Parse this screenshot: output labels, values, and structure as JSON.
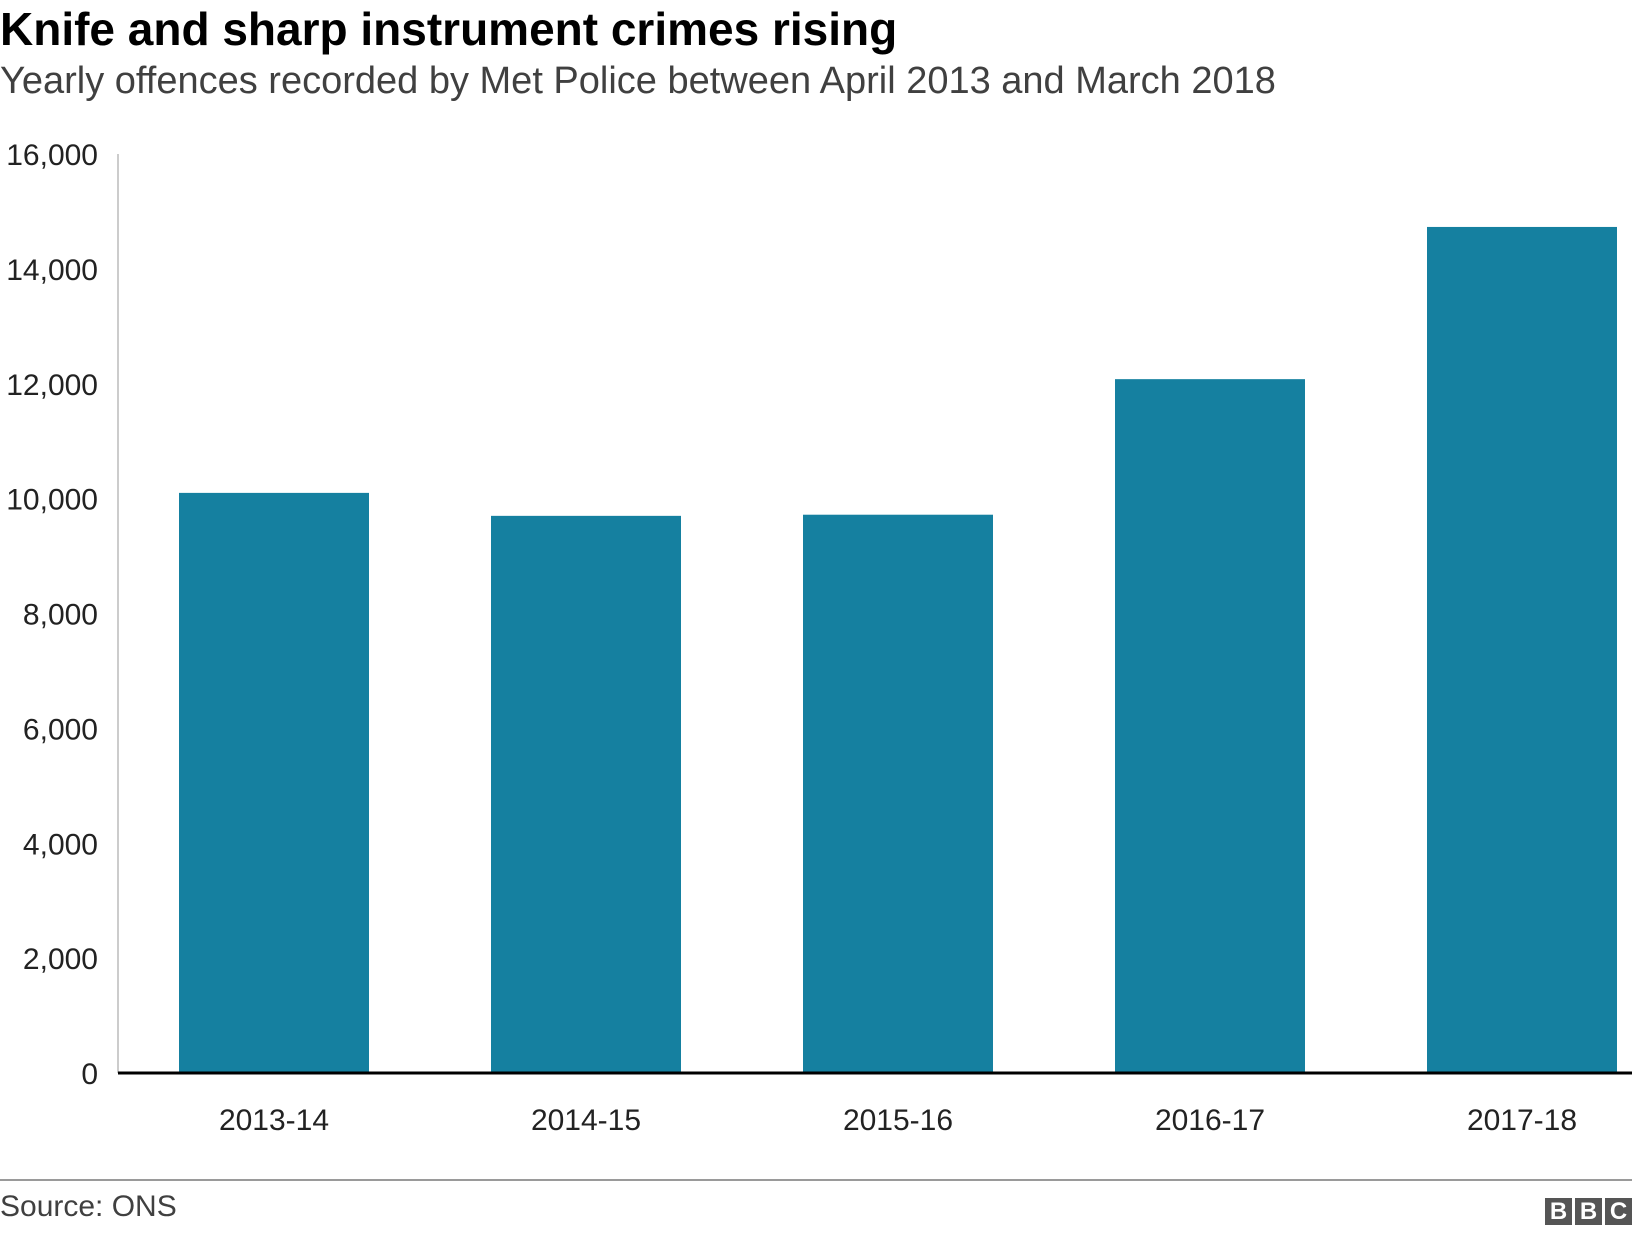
{
  "header": {
    "title": "Knife and sharp instrument crimes rising",
    "subtitle": "Yearly offences recorded by Met Police between April 2013 and March 2018"
  },
  "footer": {
    "source": "Source: ONS",
    "logo_letters": [
      "B",
      "B",
      "C"
    ]
  },
  "colors": {
    "bar": "#1580a0",
    "axis": "#000000",
    "gridline": "#cccccc",
    "tick_text": "#222222"
  },
  "chart_data": {
    "type": "bar",
    "title": "Knife and sharp instrument crimes rising",
    "subtitle": "Yearly offences recorded by Met Police between April 2013 and March 2018",
    "categories": [
      "2013-14",
      "2014-15",
      "2015-16",
      "2016-17",
      "2017-18"
    ],
    "values": [
      10100,
      9700,
      9720,
      12080,
      14730
    ],
    "ylim": [
      0,
      16000
    ],
    "yticks": [
      0,
      2000,
      4000,
      6000,
      8000,
      10000,
      12000,
      14000,
      16000
    ],
    "ytick_labels": [
      "0",
      "2,000",
      "4,000",
      "6,000",
      "8,000",
      "10,000",
      "12,000",
      "14,000",
      "16,000"
    ],
    "grid": false,
    "legend": "none"
  }
}
